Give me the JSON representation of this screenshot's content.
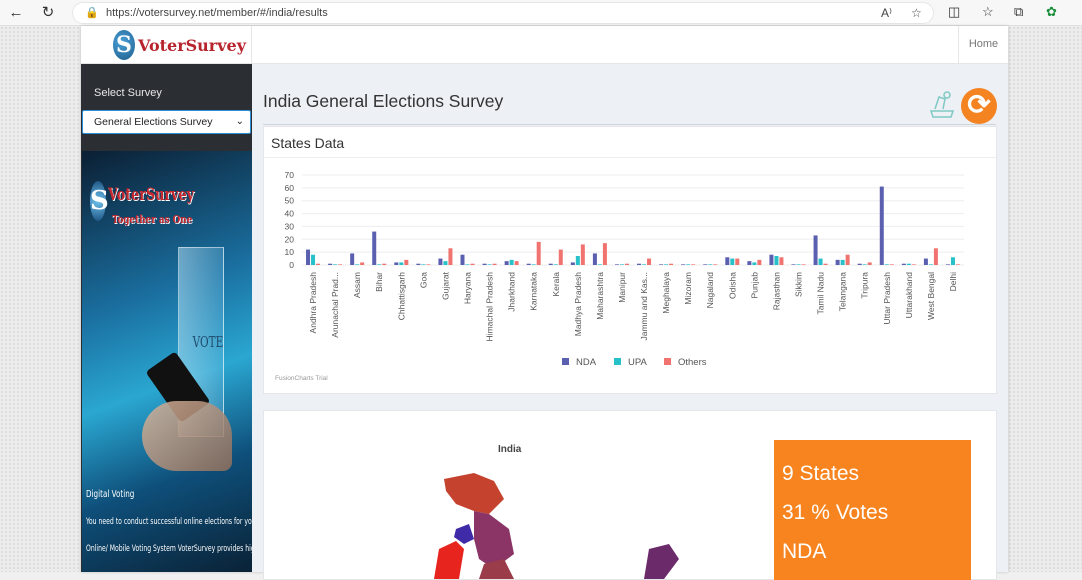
{
  "browser": {
    "url": "https://votersurvey.net/member/#/india/results"
  },
  "site": {
    "logo_text": "VoterSurvey",
    "home_label": "Home"
  },
  "sidebar": {
    "select_label": "Select Survey",
    "selected_survey": "General Elections Survey",
    "promo": {
      "title": "VoterSurvey",
      "subtitle": "Together as One",
      "ballot_word": "VOTE",
      "line1": "Digital Voting",
      "line2": "You need to conduct successful online elections for your members.",
      "line3": "Online/ Mobile Voting System VoterSurvey provides high-quality election"
    }
  },
  "main": {
    "page_title": "India General Elections Survey",
    "states_card_title": "States Data",
    "watermark": "FusionCharts Trial",
    "map_title": "India",
    "stat_lines": [
      "9 States",
      "31 % Votes",
      "NDA"
    ]
  },
  "colors": {
    "nda": "#5a5fb0",
    "upa": "#26c1c9",
    "others": "#f0736f",
    "accent": "#f7841e"
  },
  "chart_data": {
    "type": "bar",
    "title": "States Data",
    "ylim": [
      0,
      70
    ],
    "yticks": [
      0,
      10,
      20,
      30,
      40,
      50,
      60,
      70
    ],
    "legend_position": "bottom",
    "categories": [
      "Andhra Pradesh",
      "Arunachal Prad...",
      "Assam",
      "Bihar",
      "Chhattisgarh",
      "Goa",
      "Gujarat",
      "Haryana",
      "Himachal Pradesh",
      "Jharkhand",
      "Karnataka",
      "Kerala",
      "Madhya Pradesh",
      "Maharashtra",
      "Manipur",
      "Jammu and Kas...",
      "Meghalaya",
      "Mizoram",
      "Nagaland",
      "Odisha",
      "Punjab",
      "Rajasthan",
      "Sikkim",
      "Tamil Nadu",
      "Telangana",
      "Tripura",
      "Uttar Pradesh",
      "Uttarakhand",
      "West Bengal",
      "Delhi"
    ],
    "series": [
      {
        "name": "NDA",
        "values": [
          12,
          1,
          9,
          26,
          2,
          1,
          5,
          8,
          1,
          3,
          1,
          1,
          2,
          9,
          0.5,
          1,
          0.5,
          0.5,
          0.5,
          6,
          3,
          8,
          0.5,
          23,
          4,
          1,
          61,
          1,
          5,
          0.5
        ]
      },
      {
        "name": "UPA",
        "values": [
          8,
          0.5,
          0.5,
          0.5,
          2,
          0.5,
          3,
          0.5,
          0.5,
          4,
          0.5,
          0.5,
          7,
          0.5,
          0.5,
          0.5,
          0.5,
          0.5,
          0.5,
          5,
          2,
          7,
          0.5,
          5,
          4,
          0.5,
          0.5,
          1,
          0.5,
          6
        ]
      },
      {
        "name": "Others",
        "values": [
          1,
          0.5,
          2,
          1,
          4,
          0.5,
          13,
          1,
          1,
          3,
          18,
          12,
          16,
          17,
          1,
          5,
          1,
          0.5,
          0.5,
          5,
          4,
          6,
          0.5,
          1,
          8,
          2,
          0.5,
          0.5,
          13,
          0.5
        ]
      }
    ]
  }
}
